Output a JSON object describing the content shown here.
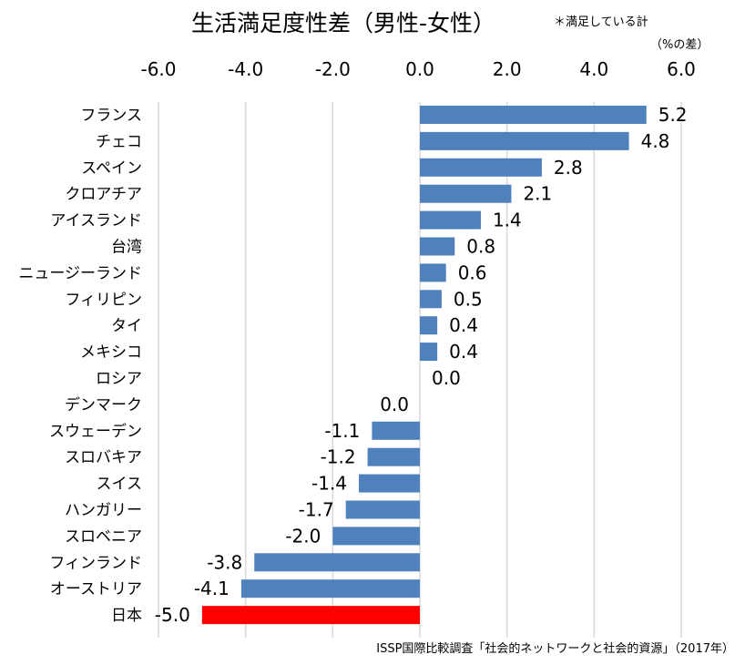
{
  "header": {
    "title": "生活満足度性差（男性-女性）",
    "note": "＊満足している計",
    "unit": "（%の差）"
  },
  "footer": {
    "source": "ISSP国際比較調査「社会的ネットワークと社会的資源」（2017年）"
  },
  "colors": {
    "bar": "#4f81bd",
    "highlight": "#ff0000",
    "grid": "#d9d9d9"
  },
  "chart_data": {
    "type": "bar",
    "orientation": "horizontal",
    "title": "生活満足度性差（男性-女性）",
    "xlim": [
      -6.0,
      6.0
    ],
    "x_ticks": [
      "-6.0",
      "-4.0",
      "-2.0",
      "0.0",
      "2.0",
      "4.0",
      "6.0"
    ],
    "x_axis_position": "top",
    "grid": true,
    "categories": [
      "フランス",
      "チェコ",
      "スペイン",
      "クロアチア",
      "アイスランド",
      "台湾",
      "ニュージーランド",
      "フィリピン",
      "タイ",
      "メキシコ",
      "ロシア",
      "デンマーク",
      "スウェーデン",
      "スロバキア",
      "スイス",
      "ハンガリー",
      "スロベニア",
      "フィンランド",
      "オーストリア",
      "日本"
    ],
    "values": [
      5.2,
      4.8,
      2.8,
      2.1,
      1.4,
      0.8,
      0.6,
      0.5,
      0.4,
      0.4,
      0.0,
      0.0,
      -1.1,
      -1.2,
      -1.4,
      -1.7,
      -2.0,
      -3.8,
      -4.1,
      -5.0
    ],
    "labels": [
      "5.2",
      "4.8",
      "2.8",
      "2.1",
      "1.4",
      "0.8",
      "0.6",
      "0.5",
      "0.4",
      "0.4",
      "0.0",
      "0.0",
      "-1.1",
      "-1.2",
      "-1.4",
      "-1.7",
      "-2.0",
      "-3.8",
      "-4.1",
      "-5.0"
    ],
    "highlight": "日本"
  }
}
